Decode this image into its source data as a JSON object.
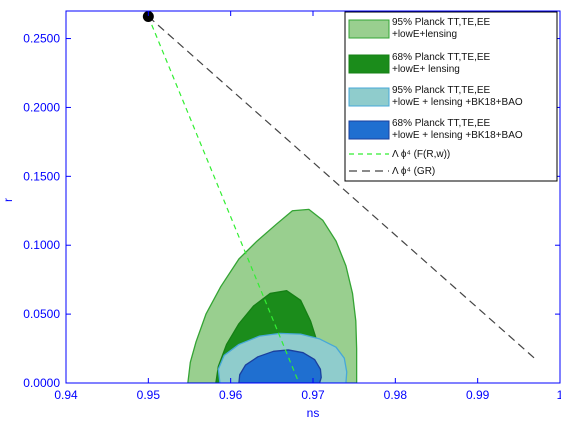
{
  "chart_data": {
    "type": "contour",
    "xlabel": "ns",
    "ylabel": "r",
    "xlim": [
      0.94,
      1.0
    ],
    "ylim": [
      0.0,
      0.27
    ],
    "x_ticks": [
      0.94,
      0.95,
      0.96,
      0.97,
      0.98,
      0.99,
      1.0
    ],
    "x_tick_labels": [
      "0.94",
      "0.95",
      "0.96",
      "0.97",
      "0.98",
      "0.99",
      "1"
    ],
    "y_ticks": [
      0.0,
      0.05,
      0.1,
      0.15,
      0.2,
      0.25
    ],
    "y_tick_labels": [
      "0.0000",
      "0.0500",
      "0.1000",
      "0.1500",
      "0.2000",
      "0.2500"
    ],
    "grid": false,
    "legend_position": "top-right",
    "contours": [
      {
        "id": "planck-95",
        "label_lines": [
          "95% Planck TT,TE,EE",
          "+lowE+lensing"
        ],
        "fill": "#99cf8f",
        "stroke": "#34a434",
        "points": [
          [
            0.9548,
            0.0
          ],
          [
            0.9551,
            0.015
          ],
          [
            0.9558,
            0.03
          ],
          [
            0.957,
            0.05
          ],
          [
            0.9588,
            0.07
          ],
          [
            0.961,
            0.09
          ],
          [
            0.9632,
            0.103
          ],
          [
            0.9655,
            0.115
          ],
          [
            0.9675,
            0.125
          ],
          [
            0.9695,
            0.126
          ],
          [
            0.9712,
            0.118
          ],
          [
            0.9728,
            0.103
          ],
          [
            0.974,
            0.085
          ],
          [
            0.9748,
            0.065
          ],
          [
            0.9752,
            0.045
          ],
          [
            0.9753,
            0.025
          ],
          [
            0.9753,
            0.0
          ]
        ]
      },
      {
        "id": "planck-68",
        "label_lines": [
          "68% Planck TT,TE,EE",
          "+lowE+ lensing"
        ],
        "fill": "#1b8c1b",
        "stroke": "#158015",
        "points": [
          [
            0.9582,
            0.0
          ],
          [
            0.9585,
            0.012
          ],
          [
            0.9595,
            0.028
          ],
          [
            0.961,
            0.043
          ],
          [
            0.9628,
            0.056
          ],
          [
            0.9648,
            0.065
          ],
          [
            0.9668,
            0.067
          ],
          [
            0.9685,
            0.06
          ],
          [
            0.9697,
            0.045
          ],
          [
            0.9705,
            0.03
          ],
          [
            0.9708,
            0.015
          ],
          [
            0.9709,
            0.0
          ]
        ]
      },
      {
        "id": "bk18-95",
        "label_lines": [
          "95% Planck TT,TE,EE",
          "+lowE + lensing +BK18+BAO"
        ],
        "fill": "#8fcccc",
        "stroke": "#47a8d8",
        "points": [
          [
            0.9587,
            0.0
          ],
          [
            0.9585,
            0.01
          ],
          [
            0.9592,
            0.02
          ],
          [
            0.961,
            0.028
          ],
          [
            0.9635,
            0.034
          ],
          [
            0.966,
            0.036
          ],
          [
            0.9685,
            0.0355
          ],
          [
            0.9708,
            0.032
          ],
          [
            0.9728,
            0.026
          ],
          [
            0.9738,
            0.018
          ],
          [
            0.9741,
            0.008
          ],
          [
            0.974,
            0.0
          ]
        ]
      },
      {
        "id": "bk18-68",
        "label_lines": [
          "68% Planck TT,TE,EE",
          "+lowE + lensing +BK18+BAO"
        ],
        "fill": "#1f6fd0",
        "stroke": "#1a3f9e",
        "points": [
          [
            0.961,
            0.0
          ],
          [
            0.9611,
            0.006
          ],
          [
            0.9618,
            0.013
          ],
          [
            0.9633,
            0.019
          ],
          [
            0.9652,
            0.023
          ],
          [
            0.967,
            0.024
          ],
          [
            0.9688,
            0.022
          ],
          [
            0.9702,
            0.017
          ],
          [
            0.9709,
            0.01
          ],
          [
            0.971,
            0.004
          ],
          [
            0.9708,
            0.0
          ]
        ]
      }
    ],
    "lines": [
      {
        "id": "fr",
        "label": "Λ ϕ⁴ (F(R,w))",
        "color": "#33ee33",
        "dash": "5,4",
        "points": [
          [
            0.95,
            0.266
          ],
          [
            0.9683,
            0.0
          ]
        ]
      },
      {
        "id": "gr",
        "label": "Λ ϕ⁴ (GR)",
        "color": "#444444",
        "dash": "8,5",
        "points": [
          [
            0.95,
            0.266
          ],
          [
            0.9969,
            0.018
          ]
        ]
      }
    ],
    "point": {
      "x": 0.95,
      "y": 0.266,
      "color": "#000000"
    }
  }
}
